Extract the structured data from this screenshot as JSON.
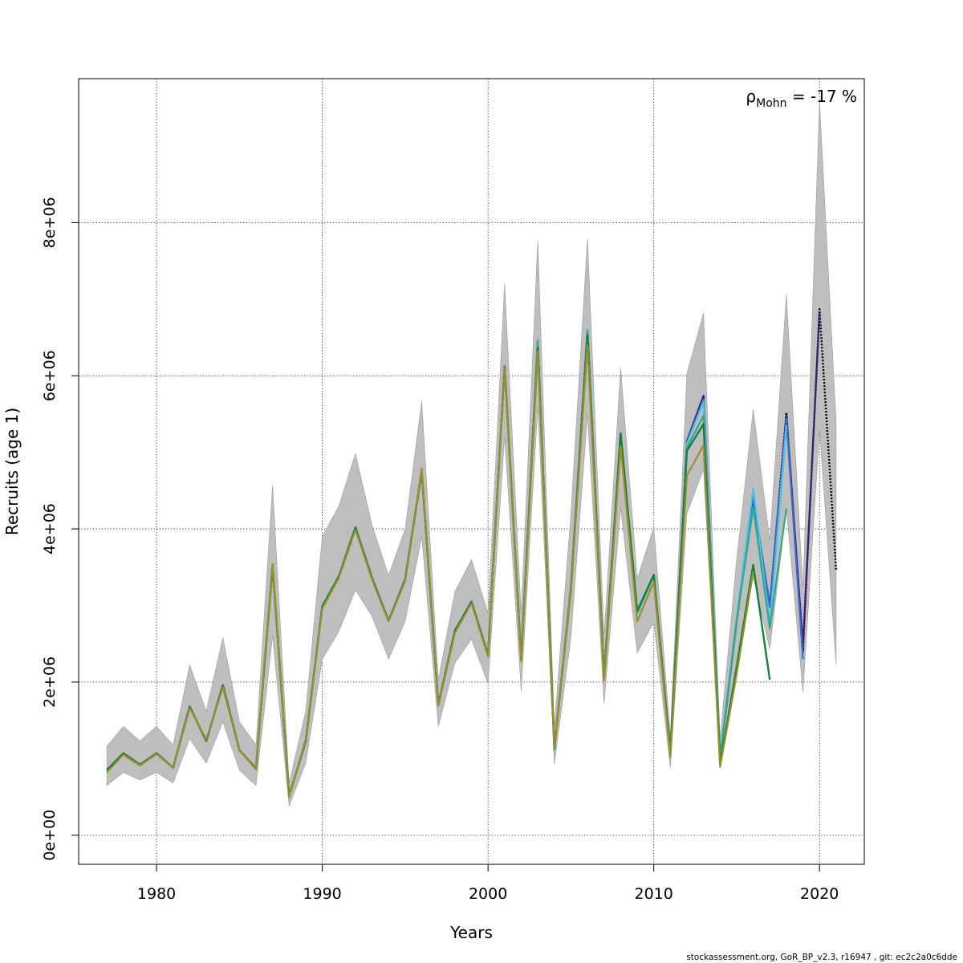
{
  "chart_data": {
    "type": "line",
    "title": "",
    "xlabel": "Years",
    "ylabel": "Recruits (age 1)",
    "xlim": [
      1975.3,
      2022.7
    ],
    "ylim": [
      -380000,
      9880000
    ],
    "xticks": [
      1980,
      1990,
      2000,
      2010,
      2020
    ],
    "xtick_labels": [
      "1980",
      "1990",
      "2000",
      "2010",
      "2020"
    ],
    "yticks": [
      0,
      2000000,
      4000000,
      6000000,
      8000000
    ],
    "ytick_labels": [
      "0e+00",
      "2e+06",
      "4e+06",
      "6e+06",
      "8e+06"
    ],
    "grid": true,
    "annotation": {
      "rho": "ρ",
      "subscript": "Mohn",
      "text": " = -17 %"
    },
    "footer": "stockassessment.org, GoR_BP_v2.3, r16947 , git: ec2c2a0c6dde",
    "years": [
      1977,
      1978,
      1979,
      1980,
      1981,
      1982,
      1983,
      1984,
      1985,
      1986,
      1987,
      1988,
      1989,
      1990,
      1991,
      1992,
      1993,
      1994,
      1995,
      1996,
      1997,
      1998,
      1999,
      2000,
      2001,
      2002,
      2003,
      2004,
      2005,
      2006,
      2007,
      2008,
      2009,
      2010,
      2011,
      2012,
      2013,
      2014,
      2015,
      2016,
      2017,
      2018,
      2019,
      2020,
      2021
    ],
    "band_upper": [
      1160000,
      1420000,
      1230000,
      1420000,
      1180000,
      2220000,
      1620000,
      2580000,
      1480000,
      1180000,
      4570000,
      680000,
      1620000,
      3900000,
      4300000,
      4980000,
      4050000,
      3390000,
      4000000,
      5670000,
      2030000,
      3180000,
      3600000,
      2900000,
      7200000,
      2900000,
      7760000,
      1420000,
      4200000,
      7790000,
      2600000,
      6100000,
      3350000,
      4020000,
      1300000,
      6030000,
      6820000,
      1260000,
      3600000,
      5560000,
      3850000,
      7060000,
      3220000,
      9580000,
      5400000
    ],
    "band_lower": [
      650000,
      820000,
      720000,
      820000,
      680000,
      1260000,
      940000,
      1480000,
      850000,
      650000,
      2600000,
      380000,
      940000,
      2300000,
      2660000,
      3200000,
      2860000,
      2300000,
      2790000,
      3900000,
      1420000,
      2250000,
      2560000,
      1980000,
      5200000,
      1880000,
      5600000,
      930000,
      2580000,
      5500000,
      1720000,
      4280000,
      2380000,
      2780000,
      880000,
      4200000,
      4780000,
      880000,
      2200000,
      3370000,
      2430000,
      4260000,
      1870000,
      5300000,
      2230000
    ],
    "series": [
      {
        "name": "",
        "color": "#000000",
        "dashed": true,
        "width": 2.4,
        "values": [
          850000,
          1070000,
          920000,
          1070000,
          880000,
          1680000,
          1230000,
          1960000,
          1110000,
          870000,
          3520000,
          510000,
          1230000,
          2990000,
          3380000,
          4020000,
          3360000,
          2800000,
          3340000,
          4760000,
          1700000,
          2670000,
          3050000,
          2350000,
          6130000,
          2290000,
          6460000,
          1140000,
          3240000,
          6600000,
          2070000,
          5240000,
          2900000,
          3400000,
          1080000,
          5130000,
          5720000,
          1000000,
          2800000,
          4400000,
          3000000,
          5520000,
          2400000,
          6870000,
          3460000
        ]
      },
      {
        "name": "",
        "color": "#3a1d73",
        "width": 2.2,
        "values": [
          850000,
          1070000,
          920000,
          1070000,
          880000,
          1680000,
          1230000,
          1960000,
          1110000,
          870000,
          3520000,
          510000,
          1230000,
          2990000,
          3380000,
          4020000,
          3360000,
          2800000,
          3340000,
          4760000,
          1700000,
          2670000,
          3050000,
          2350000,
          6130000,
          2290000,
          6460000,
          1140000,
          3240000,
          6600000,
          2070000,
          5240000,
          2900000,
          3400000,
          1080000,
          5150000,
          5740000,
          1000000,
          2790000,
          4380000,
          2990000,
          5480000,
          2480000,
          6830000,
          null
        ]
      },
      {
        "name": "",
        "color": "#3a6bd1",
        "width": 2.2,
        "values": [
          850000,
          1070000,
          920000,
          1070000,
          880000,
          1680000,
          1230000,
          1960000,
          1110000,
          870000,
          3520000,
          510000,
          1230000,
          2990000,
          3380000,
          4020000,
          3360000,
          2800000,
          3340000,
          4760000,
          1700000,
          2670000,
          3050000,
          2350000,
          6130000,
          2290000,
          6460000,
          1140000,
          3240000,
          6600000,
          2070000,
          5240000,
          2900000,
          3400000,
          1080000,
          5120000,
          5690000,
          1010000,
          2820000,
          4420000,
          2980000,
          5430000,
          2300000,
          null,
          null
        ]
      },
      {
        "name": "",
        "color": "#45c2e6",
        "width": 2.2,
        "values": [
          850000,
          1070000,
          920000,
          1070000,
          880000,
          1680000,
          1230000,
          1960000,
          1110000,
          870000,
          3520000,
          510000,
          1230000,
          2990000,
          3380000,
          4020000,
          3360000,
          2800000,
          3340000,
          4760000,
          1700000,
          2670000,
          3050000,
          2350000,
          6130000,
          2290000,
          6460000,
          1140000,
          3240000,
          6600000,
          2070000,
          5240000,
          2900000,
          3400000,
          1080000,
          5120000,
          5660000,
          1020000,
          2830000,
          4530000,
          2740000,
          5350000,
          null,
          null,
          null
        ]
      },
      {
        "name": "",
        "color": "#35a78a",
        "width": 2.2,
        "values": [
          850000,
          1070000,
          920000,
          1070000,
          880000,
          1680000,
          1230000,
          1960000,
          1110000,
          870000,
          3520000,
          510000,
          1230000,
          2990000,
          3380000,
          4020000,
          3360000,
          2800000,
          3340000,
          4760000,
          1700000,
          2670000,
          3050000,
          2350000,
          6120000,
          2280000,
          6440000,
          1120000,
          3220000,
          6580000,
          2060000,
          5220000,
          2910000,
          3390000,
          1070000,
          5060000,
          5480000,
          1010000,
          2800000,
          4280000,
          2700000,
          4270000,
          null,
          null,
          null
        ]
      },
      {
        "name": "",
        "color": "#167f3b",
        "width": 2.4,
        "values": [
          850000,
          1070000,
          920000,
          1070000,
          880000,
          1680000,
          1230000,
          1960000,
          1110000,
          870000,
          3520000,
          510000,
          1230000,
          2990000,
          3380000,
          4020000,
          3360000,
          2800000,
          3340000,
          4760000,
          1700000,
          2670000,
          3050000,
          2350000,
          6120000,
          2300000,
          6360000,
          1140000,
          3200000,
          6540000,
          2040000,
          5250000,
          2930000,
          3400000,
          1080000,
          5020000,
          5370000,
          920000,
          2200000,
          3530000,
          2030000,
          null,
          null,
          null,
          null
        ]
      },
      {
        "name": "",
        "color": "#9a8f2b",
        "width": 2.2,
        "values": [
          820000,
          1050000,
          910000,
          1060000,
          880000,
          1660000,
          1250000,
          1930000,
          1110000,
          860000,
          3540000,
          500000,
          1250000,
          2960000,
          3360000,
          3990000,
          3340000,
          2790000,
          3320000,
          4790000,
          1690000,
          2640000,
          3030000,
          2330000,
          6110000,
          2270000,
          6320000,
          1150000,
          3190000,
          6400000,
          2020000,
          5080000,
          2790000,
          3310000,
          1020000,
          4700000,
          5090000,
          890000,
          2100000,
          3450000,
          null,
          null,
          null,
          null,
          null
        ]
      }
    ]
  }
}
